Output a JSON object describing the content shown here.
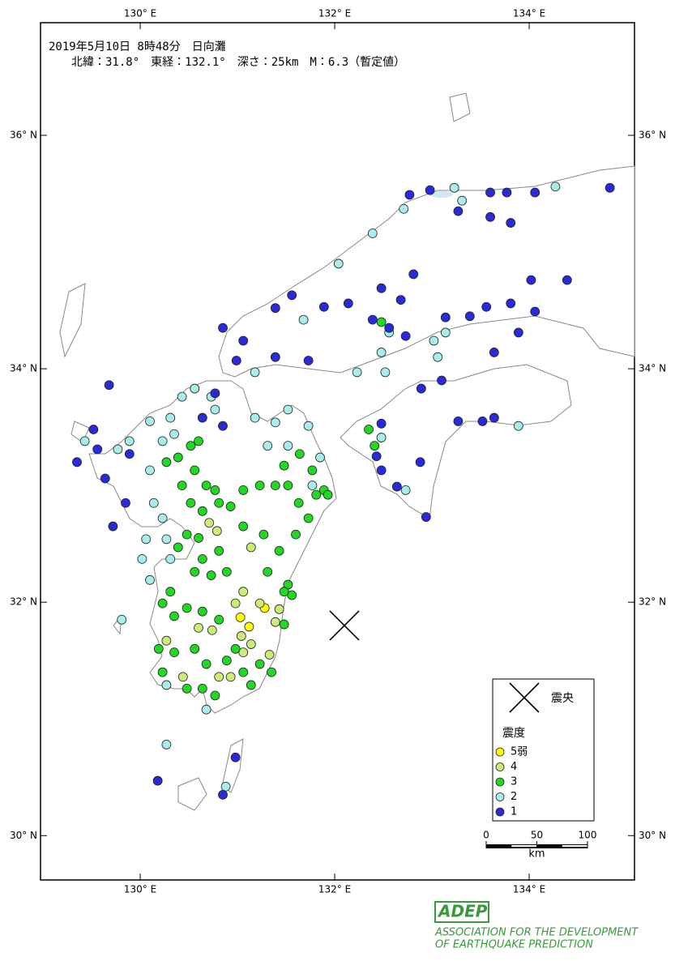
{
  "title_line1": "2019年5月10日 8時48分　日向灘",
  "title_line2": "北緯：31.8°　東経：132.1°　深さ：25km　M：6.3（暫定値）",
  "xlim": [
    128.975,
    135.083
  ],
  "ylim": [
    29.62,
    36.965
  ],
  "xticks": [
    {
      "value": 130,
      "label": "130° E"
    },
    {
      "value": 132,
      "label": "132° E"
    },
    {
      "value": 134,
      "label": "134° E"
    }
  ],
  "yticks": [
    {
      "value": 30,
      "label": "30° N"
    },
    {
      "value": 32,
      "label": "32° N"
    },
    {
      "value": 34,
      "label": "34° N"
    },
    {
      "value": 36,
      "label": "36° N"
    }
  ],
  "epicenter": {
    "lon": 132.1,
    "lat": 31.8,
    "label": "震央"
  },
  "legend": {
    "title": "震度",
    "items": [
      {
        "label": "5弱",
        "color": "#ffff00"
      },
      {
        "label": "4",
        "color": "#cceb78"
      },
      {
        "label": "3",
        "color": "#22d822"
      },
      {
        "label": "2",
        "color": "#a8ecec"
      },
      {
        "label": "1",
        "color": "#2a2ad8"
      }
    ]
  },
  "scale": {
    "ticks": [
      0,
      50,
      100
    ],
    "unit": "km"
  },
  "logo": {
    "name": "ADEP",
    "line1": "ASSOCIATION  FOR THE DEVELOPMENT",
    "line2": "OF EARTHQUAKE PREDICTION"
  },
  "stations": [
    [
      131.03,
      31.87,
      0
    ],
    [
      131.12,
      31.79,
      0
    ],
    [
      131.28,
      31.95,
      0
    ],
    [
      130.98,
      31.99,
      1
    ],
    [
      131.23,
      31.99,
      1
    ],
    [
      131.43,
      31.94,
      1
    ],
    [
      131.39,
      31.83,
      1
    ],
    [
      131.04,
      31.71,
      1
    ],
    [
      131.14,
      31.64,
      1
    ],
    [
      130.74,
      31.76,
      1
    ],
    [
      130.6,
      31.78,
      1
    ],
    [
      130.71,
      32.68,
      1
    ],
    [
      130.79,
      32.61,
      1
    ],
    [
      131.14,
      32.47,
      1
    ],
    [
      131.06,
      31.57,
      1
    ],
    [
      130.93,
      31.36,
      1
    ],
    [
      130.27,
      31.67,
      1
    ],
    [
      131.33,
      31.55,
      1
    ],
    [
      131.06,
      32.09,
      1
    ],
    [
      130.44,
      31.36,
      1
    ],
    [
      130.81,
      31.36,
      1
    ],
    [
      130.39,
      33.24,
      2
    ],
    [
      130.52,
      33.34,
      2
    ],
    [
      130.6,
      33.38,
      2
    ],
    [
      130.27,
      33.2,
      2
    ],
    [
      130.56,
      33.13,
      2
    ],
    [
      130.68,
      33.0,
      2
    ],
    [
      130.77,
      32.96,
      2
    ],
    [
      130.43,
      33.0,
      2
    ],
    [
      130.52,
      32.85,
      2
    ],
    [
      130.64,
      32.78,
      2
    ],
    [
      130.81,
      32.85,
      2
    ],
    [
      131.06,
      32.96,
      2
    ],
    [
      131.23,
      33.0,
      2
    ],
    [
      131.39,
      33.0,
      2
    ],
    [
      131.48,
      33.17,
      2
    ],
    [
      131.52,
      33.0,
      2
    ],
    [
      131.77,
      33.13,
      2
    ],
    [
      131.89,
      32.96,
      2
    ],
    [
      131.73,
      32.72,
      2
    ],
    [
      131.6,
      32.58,
      2
    ],
    [
      131.43,
      32.44,
      2
    ],
    [
      131.27,
      32.58,
      2
    ],
    [
      131.06,
      32.65,
      2
    ],
    [
      130.93,
      32.82,
      2
    ],
    [
      130.81,
      32.44,
      2
    ],
    [
      130.64,
      32.37,
      2
    ],
    [
      130.56,
      32.26,
      2
    ],
    [
      130.73,
      32.23,
      2
    ],
    [
      130.89,
      32.26,
      2
    ],
    [
      131.31,
      32.26,
      2
    ],
    [
      131.52,
      32.15,
      2
    ],
    [
      131.56,
      32.06,
      2
    ],
    [
      131.48,
      32.09,
      2
    ],
    [
      130.31,
      32.09,
      2
    ],
    [
      130.23,
      31.99,
      2
    ],
    [
      130.35,
      31.88,
      2
    ],
    [
      130.48,
      31.95,
      2
    ],
    [
      130.64,
      31.92,
      2
    ],
    [
      130.81,
      31.85,
      2
    ],
    [
      130.56,
      31.6,
      2
    ],
    [
      130.68,
      31.47,
      2
    ],
    [
      130.89,
      31.5,
      2
    ],
    [
      130.98,
      31.6,
      2
    ],
    [
      131.06,
      31.4,
      2
    ],
    [
      131.23,
      31.47,
      2
    ],
    [
      131.35,
      31.4,
      2
    ],
    [
      130.64,
      31.26,
      2
    ],
    [
      130.77,
      31.2,
      2
    ],
    [
      130.48,
      31.26,
      2
    ],
    [
      130.23,
      31.4,
      2
    ],
    [
      130.35,
      31.57,
      2
    ],
    [
      130.19,
      31.6,
      2
    ],
    [
      131.14,
      31.29,
      2
    ],
    [
      131.64,
      33.27,
      2
    ],
    [
      131.81,
      32.92,
      2
    ],
    [
      131.93,
      32.92,
      2
    ],
    [
      131.63,
      32.85,
      2
    ],
    [
      130.48,
      32.58,
      2
    ],
    [
      130.6,
      32.55,
      2
    ],
    [
      130.39,
      32.47,
      2
    ],
    [
      131.48,
      31.81,
      2
    ],
    [
      132.35,
      33.48,
      2
    ],
    [
      132.41,
      33.34,
      2
    ],
    [
      132.48,
      34.4,
      2
    ],
    [
      130.23,
      33.38,
      3
    ],
    [
      130.35,
      33.44,
      3
    ],
    [
      130.1,
      33.55,
      3
    ],
    [
      130.31,
      33.58,
      3
    ],
    [
      130.43,
      33.76,
      3
    ],
    [
      130.56,
      33.83,
      3
    ],
    [
      130.73,
      33.76,
      3
    ],
    [
      130.77,
      33.65,
      3
    ],
    [
      130.1,
      33.13,
      3
    ],
    [
      130.14,
      32.85,
      3
    ],
    [
      130.23,
      32.72,
      3
    ],
    [
      130.06,
      32.54,
      3
    ],
    [
      130.27,
      32.54,
      3
    ],
    [
      130.31,
      32.37,
      3
    ],
    [
      130.02,
      32.37,
      3
    ],
    [
      130.1,
      32.19,
      3
    ],
    [
      129.81,
      31.85,
      3
    ],
    [
      130.27,
      30.78,
      3
    ],
    [
      130.88,
      30.42,
      3
    ],
    [
      130.27,
      31.29,
      3
    ],
    [
      131.18,
      33.58,
      3
    ],
    [
      131.39,
      33.54,
      3
    ],
    [
      131.52,
      33.65,
      3
    ],
    [
      131.73,
      33.51,
      3
    ],
    [
      131.31,
      33.34,
      3
    ],
    [
      131.52,
      33.34,
      3
    ],
    [
      131.77,
      33.0,
      3
    ],
    [
      131.85,
      33.24,
      3
    ],
    [
      129.89,
      33.38,
      3
    ],
    [
      129.77,
      33.31,
      3
    ],
    [
      129.43,
      33.38,
      3
    ],
    [
      131.18,
      33.97,
      3
    ],
    [
      131.68,
      34.42,
      3
    ],
    [
      132.04,
      34.9,
      3
    ],
    [
      132.39,
      35.16,
      3
    ],
    [
      132.71,
      35.37,
      3
    ],
    [
      133.23,
      35.55,
      3
    ],
    [
      133.31,
      35.44,
      3
    ],
    [
      132.56,
      34.31,
      3
    ],
    [
      132.52,
      33.97,
      3
    ],
    [
      132.23,
      33.97,
      3
    ],
    [
      132.48,
      34.14,
      3
    ],
    [
      133.14,
      34.31,
      3
    ],
    [
      133.02,
      34.24,
      3
    ],
    [
      132.48,
      33.41,
      3
    ],
    [
      132.73,
      32.96,
      3
    ],
    [
      134.27,
      35.56,
      3
    ],
    [
      133.89,
      33.51,
      3
    ],
    [
      133.06,
      34.1,
      3
    ],
    [
      130.68,
      31.08,
      3
    ],
    [
      132.77,
      35.49,
      4
    ],
    [
      132.98,
      35.53,
      4
    ],
    [
      133.27,
      35.35,
      4
    ],
    [
      133.6,
      35.51,
      4
    ],
    [
      133.77,
      35.51,
      4
    ],
    [
      134.06,
      35.51,
      4
    ],
    [
      134.83,
      35.55,
      4
    ],
    [
      133.6,
      35.3,
      4
    ],
    [
      133.81,
      35.25,
      4
    ],
    [
      132.81,
      34.81,
      4
    ],
    [
      132.48,
      34.69,
      4
    ],
    [
      132.14,
      34.56,
      4
    ],
    [
      131.89,
      34.53,
      4
    ],
    [
      131.56,
      34.63,
      4
    ],
    [
      131.39,
      34.52,
      4
    ],
    [
      131.06,
      34.24,
      4
    ],
    [
      130.85,
      34.35,
      4
    ],
    [
      130.99,
      34.07,
      4
    ],
    [
      131.39,
      34.1,
      4
    ],
    [
      131.73,
      34.07,
      4
    ],
    [
      132.68,
      34.59,
      4
    ],
    [
      132.39,
      34.42,
      4
    ],
    [
      132.56,
      34.35,
      4
    ],
    [
      132.73,
      34.28,
      4
    ],
    [
      133.14,
      34.44,
      4
    ],
    [
      133.39,
      34.45,
      4
    ],
    [
      133.56,
      34.53,
      4
    ],
    [
      133.81,
      34.56,
      4
    ],
    [
      134.06,
      34.49,
      4
    ],
    [
      133.89,
      34.31,
      4
    ],
    [
      134.02,
      34.76,
      4
    ],
    [
      134.39,
      34.76,
      4
    ],
    [
      133.64,
      34.14,
      4
    ],
    [
      132.89,
      33.83,
      4
    ],
    [
      133.1,
      33.9,
      4
    ],
    [
      132.48,
      33.53,
      4
    ],
    [
      132.43,
      33.25,
      4
    ],
    [
      132.48,
      33.13,
      4
    ],
    [
      132.64,
      32.99,
      4
    ],
    [
      132.94,
      32.73,
      4
    ],
    [
      132.88,
      33.2,
      4
    ],
    [
      133.27,
      33.55,
      4
    ],
    [
      133.52,
      33.55,
      4
    ],
    [
      133.64,
      33.58,
      4
    ],
    [
      129.68,
      33.86,
      4
    ],
    [
      129.52,
      33.48,
      4
    ],
    [
      129.35,
      33.2,
      4
    ],
    [
      129.56,
      33.31,
      4
    ],
    [
      129.64,
      33.06,
      4
    ],
    [
      129.85,
      32.85,
      4
    ],
    [
      129.72,
      32.65,
      4
    ],
    [
      129.89,
      33.27,
      4
    ],
    [
      130.77,
      33.79,
      4
    ],
    [
      130.85,
      33.51,
      4
    ],
    [
      130.64,
      33.58,
      4
    ],
    [
      130.98,
      30.67,
      4
    ],
    [
      130.18,
      30.47,
      4
    ],
    [
      130.85,
      30.35,
      4
    ]
  ]
}
